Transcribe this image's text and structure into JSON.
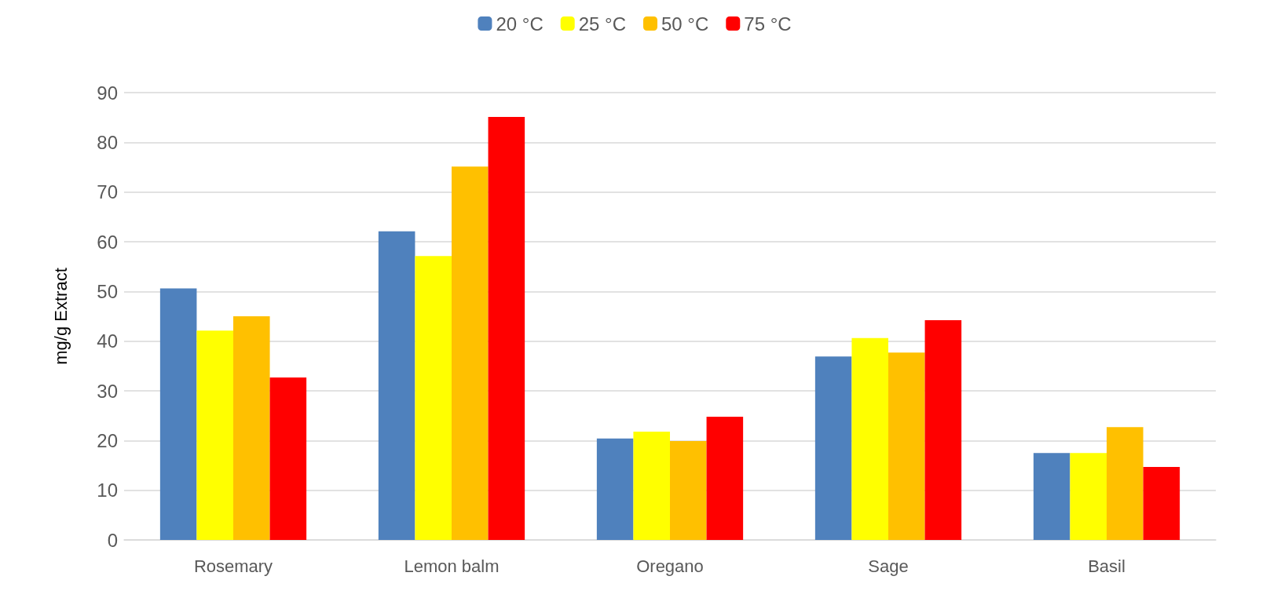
{
  "chart_data": {
    "type": "bar",
    "ylabel": "mg/g Extract",
    "categories": [
      "Rosemary",
      "Lemon balm",
      "Oregano",
      "Sage",
      "Basil"
    ],
    "series": [
      {
        "name": "20 °C",
        "color": "#4f81bd",
        "values": [
          50.6,
          62.1,
          20.4,
          36.9,
          17.5
        ]
      },
      {
        "name": "25 °C",
        "color": "#ffff00",
        "values": [
          42.1,
          57.1,
          21.8,
          40.6,
          17.5
        ]
      },
      {
        "name": "50 °C",
        "color": "#ffc000",
        "values": [
          45.0,
          75.1,
          19.9,
          37.7,
          22.7
        ]
      },
      {
        "name": "75 °C",
        "color": "#ff0000",
        "values": [
          32.7,
          85.1,
          24.8,
          44.2,
          14.7
        ]
      }
    ],
    "ylim": [
      0,
      90
    ],
    "yticks": [
      0,
      10,
      20,
      30,
      40,
      50,
      60,
      70,
      80,
      90
    ],
    "grid": "y",
    "legend": "top"
  }
}
